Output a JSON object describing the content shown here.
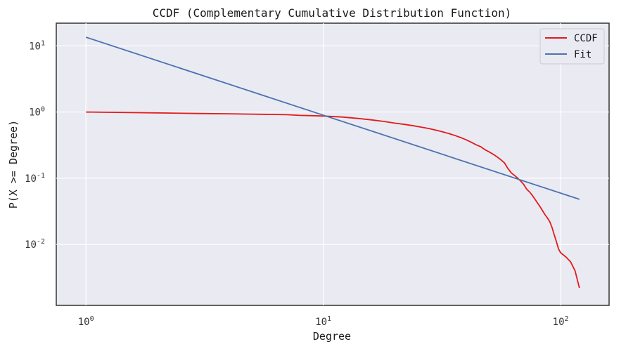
{
  "chart_data": {
    "type": "line",
    "title": "CCDF (Complementary Cumulative Distribution Function)",
    "xlabel": "Degree",
    "ylabel": "P(X >= Degree)",
    "xscale": "log",
    "yscale": "log",
    "xlim": [
      0.75,
      160
    ],
    "ylim": [
      0.0012,
      22
    ],
    "xticks": [
      {
        "value": 1,
        "base": "10",
        "exp": "0"
      },
      {
        "value": 10,
        "base": "10",
        "exp": "1"
      },
      {
        "value": 100,
        "base": "10",
        "exp": "2"
      }
    ],
    "yticks": [
      {
        "value": 10,
        "base": "10",
        "exp": "1"
      },
      {
        "value": 1,
        "base": "10",
        "exp": "0"
      },
      {
        "value": 0.1,
        "base": "10",
        "exp": "-1"
      },
      {
        "value": 0.01,
        "base": "10",
        "exp": "-2"
      }
    ],
    "grid": true,
    "legend_position": "top-right",
    "series": [
      {
        "name": "CCDF",
        "color": "#e31a1c",
        "x": [
          1,
          2,
          3,
          4,
          5,
          6,
          7,
          8,
          9,
          10,
          12,
          14,
          16,
          18,
          20,
          22,
          24,
          26,
          28,
          30,
          32,
          34,
          36,
          38,
          40,
          42,
          44,
          46,
          48,
          50,
          52,
          54,
          56,
          58,
          60,
          62,
          64,
          66,
          68,
          70,
          72,
          74,
          76,
          78,
          80,
          82,
          84,
          86,
          88,
          90,
          92,
          94,
          96,
          98,
          100,
          105,
          110,
          115,
          120
        ],
        "y": [
          1.0,
          0.97,
          0.95,
          0.94,
          0.93,
          0.92,
          0.91,
          0.89,
          0.88,
          0.87,
          0.84,
          0.8,
          0.76,
          0.72,
          0.68,
          0.65,
          0.62,
          0.59,
          0.56,
          0.53,
          0.5,
          0.47,
          0.44,
          0.41,
          0.38,
          0.35,
          0.32,
          0.3,
          0.27,
          0.25,
          0.23,
          0.21,
          0.19,
          0.17,
          0.14,
          0.12,
          0.11,
          0.1,
          0.09,
          0.08,
          0.068,
          0.062,
          0.055,
          0.048,
          0.042,
          0.037,
          0.032,
          0.028,
          0.025,
          0.022,
          0.018,
          0.014,
          0.011,
          0.0085,
          0.0075,
          0.0065,
          0.0055,
          0.004,
          0.0022
        ]
      },
      {
        "name": "Fit",
        "color": "#4c72b0",
        "x": [
          1,
          120
        ],
        "y": [
          13.5,
          0.048
        ]
      }
    ]
  }
}
